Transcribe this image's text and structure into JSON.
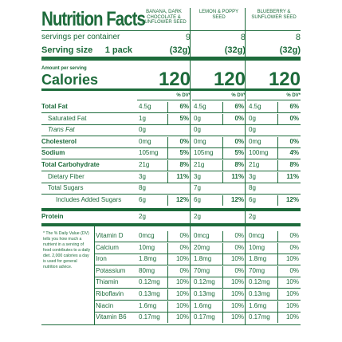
{
  "title": "Nutrition Facts",
  "servings_label": "servings per container",
  "serving_size_label": "Serving size",
  "serving_size_amount": "1 pack",
  "amount_per_serving": "Amount per serving",
  "calories_label": "Calories",
  "dv_header": "% DV*",
  "footnote": "* The % Daily Value (DV) tells you how much a nutrient in a serving of food contributes to a daily diet. 2,000 calories a day is used for general nutrition advice.",
  "nutrients": [
    {
      "name": "Total Fat",
      "bold": true
    },
    {
      "name": "Saturated Fat",
      "indent": true
    },
    {
      "name": "Trans Fat",
      "indent": true,
      "italic": true
    },
    {
      "name": "Cholesterol",
      "bold": true
    },
    {
      "name": "Sodium",
      "bold": true
    },
    {
      "name": "Total Carbohydrate",
      "bold": true
    },
    {
      "name": "Dietary Fiber",
      "indent": true
    },
    {
      "name": "Total Sugars",
      "indent": true
    },
    {
      "name": "Includes Added Sugars",
      "indent2": true
    },
    {
      "name": "Protein",
      "bold": true
    }
  ],
  "vitamins": [
    "Vitamin D",
    "Calcium",
    "Iron",
    "Potassium",
    "Thiamin",
    "Riboflavin",
    "Niacin",
    "Vitamin B6"
  ],
  "products": [
    {
      "name": "BANANA, DARK CHOCOLATE & SUNFLOWER SEED",
      "servings": "9",
      "serving_size": "(32g)",
      "calories": "120",
      "nutrients": [
        {
          "amount": "4.5g",
          "dv": "6%"
        },
        {
          "amount": "1g",
          "dv": "5%"
        },
        {
          "amount": "0g"
        },
        {
          "amount": "0mg",
          "dv": "0%"
        },
        {
          "amount": "105mg",
          "dv": "5%"
        },
        {
          "amount": "21g",
          "dv": "8%"
        },
        {
          "amount": "3g",
          "dv": "11%"
        },
        {
          "amount": "8g"
        },
        {
          "amount": "6g",
          "dv": "12%"
        },
        {
          "amount": "2g"
        }
      ],
      "vitamins": [
        {
          "amount": "0mcg",
          "dv": "0%"
        },
        {
          "amount": "10mg",
          "dv": "0%"
        },
        {
          "amount": "1.8mg",
          "dv": "10%"
        },
        {
          "amount": "80mg",
          "dv": "0%"
        },
        {
          "amount": "0.12mg",
          "dv": "10%"
        },
        {
          "amount": "0.13mg",
          "dv": "10%"
        },
        {
          "amount": "1.6mg",
          "dv": "10%"
        },
        {
          "amount": "0.17mg",
          "dv": "10%"
        }
      ]
    },
    {
      "name": "LEMON & POPPY SEED",
      "servings": "8",
      "serving_size": "(32g)",
      "calories": "120",
      "nutrients": [
        {
          "amount": "4.5g",
          "dv": "6%"
        },
        {
          "amount": "0g",
          "dv": "0%"
        },
        {
          "amount": "0g"
        },
        {
          "amount": "0mg",
          "dv": "0%"
        },
        {
          "amount": "105mg",
          "dv": "5%"
        },
        {
          "amount": "21g",
          "dv": "8%"
        },
        {
          "amount": "3g",
          "dv": "11%"
        },
        {
          "amount": "7g"
        },
        {
          "amount": "6g",
          "dv": "12%"
        },
        {
          "amount": "2g"
        }
      ],
      "vitamins": [
        {
          "amount": "0mcg",
          "dv": "0%"
        },
        {
          "amount": "20mg",
          "dv": "0%"
        },
        {
          "amount": "1.8mg",
          "dv": "10%"
        },
        {
          "amount": "70mg",
          "dv": "0%"
        },
        {
          "amount": "0.12mg",
          "dv": "10%"
        },
        {
          "amount": "0.13mg",
          "dv": "10%"
        },
        {
          "amount": "1.6mg",
          "dv": "10%"
        },
        {
          "amount": "0.17mg",
          "dv": "10%"
        }
      ]
    },
    {
      "name": "BLUEBERRY & SUNFLOWER SEED",
      "servings": "8",
      "serving_size": "(32g)",
      "calories": "120",
      "nutrients": [
        {
          "amount": "4.5g",
          "dv": "6%"
        },
        {
          "amount": "0g",
          "dv": "0%"
        },
        {
          "amount": "0g"
        },
        {
          "amount": "0mg",
          "dv": "0%"
        },
        {
          "amount": "100mg",
          "dv": "4%"
        },
        {
          "amount": "21g",
          "dv": "8%"
        },
        {
          "amount": "3g",
          "dv": "11%"
        },
        {
          "amount": "8g"
        },
        {
          "amount": "6g",
          "dv": "12%"
        },
        {
          "amount": "2g"
        }
      ],
      "vitamins": [
        {
          "amount": "0mcg",
          "dv": "0%"
        },
        {
          "amount": "10mg",
          "dv": "0%"
        },
        {
          "amount": "1.8mg",
          "dv": "10%"
        },
        {
          "amount": "70mg",
          "dv": "0%"
        },
        {
          "amount": "0.12mg",
          "dv": "10%"
        },
        {
          "amount": "0.13mg",
          "dv": "10%"
        },
        {
          "amount": "1.6mg",
          "dv": "10%"
        },
        {
          "amount": "0.17mg",
          "dv": "10%"
        }
      ]
    }
  ]
}
